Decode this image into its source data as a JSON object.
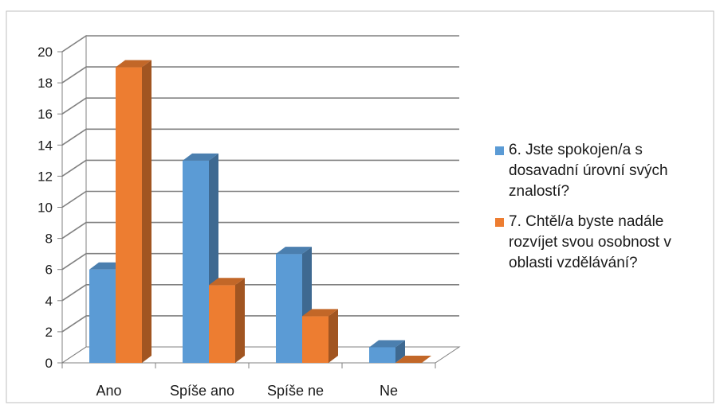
{
  "chart_data": {
    "type": "bar",
    "three_d": true,
    "categories": [
      "Ano",
      "Spíše ano",
      "Spíše ne",
      "Ne"
    ],
    "y_ticks": [
      "0",
      "2",
      "4",
      "6",
      "8",
      "10",
      "12",
      "14",
      "16",
      "18",
      "20"
    ],
    "ylim": [
      0,
      20
    ],
    "grid": true,
    "legend_position": "right",
    "series": [
      {
        "name": "6. Jste spokojen/a s\ndosavadní úrovní svých\nznalostí?",
        "values": [
          6,
          13,
          7,
          1
        ],
        "color": "#5B9BD5"
      },
      {
        "name": "7. Chtěl/a byste nadále\nrozvíjet svou osobnost v\noblasti vzdělávání?",
        "values": [
          19,
          5,
          3,
          0
        ],
        "color": "#ED7D31"
      }
    ]
  }
}
